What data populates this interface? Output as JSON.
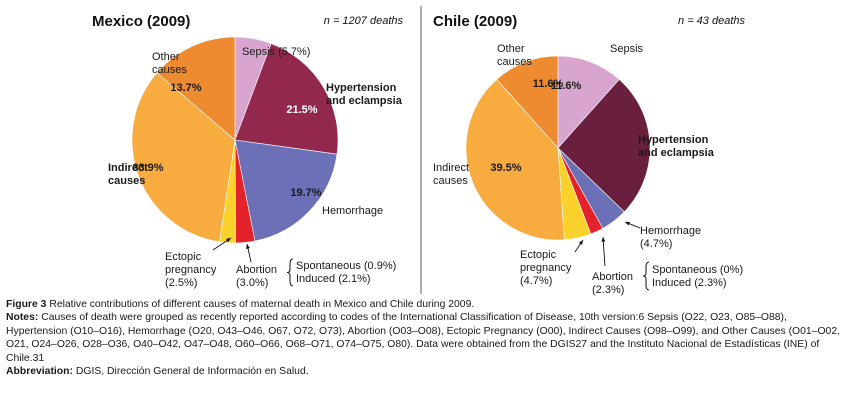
{
  "chart_data": [
    {
      "type": "pie",
      "title": "Mexico (2009)",
      "subtitle": "n = 1207 deaths",
      "slices": [
        {
          "label": "Sepsis",
          "value": 5.7,
          "value_label": "",
          "label_text": [
            "Sepsis (5.7%)"
          ],
          "color": "#d7a5ce"
        },
        {
          "label": "Hypertension and eclampsia",
          "value": 21.5,
          "value_label": "21.5%",
          "label_text": [
            "Hypertension",
            "and eclampsia"
          ],
          "color": "#93284f"
        },
        {
          "label": "Hemorrhage",
          "value": 19.7,
          "value_label": "19.7%",
          "label_text": [
            "Hemorrhage"
          ],
          "color": "#6c70b6"
        },
        {
          "label": "Abortion",
          "value": 3.0,
          "value_label": "",
          "label_text": [
            "Abortion",
            "(3.0%)"
          ],
          "color": "#e3222c"
        },
        {
          "label": "Ectopic pregnancy",
          "value": 2.5,
          "value_label": "",
          "label_text": [
            "Ectopic",
            "pregnancy",
            "(2.5%)"
          ],
          "color": "#fbd12c"
        },
        {
          "label": "Indirect causes",
          "value": 33.9,
          "value_label": "33.9%",
          "label_text": [
            "Indirect",
            "causes"
          ],
          "color": "#f8ab3f"
        },
        {
          "label": "Other causes",
          "value": 13.7,
          "value_label": "13.7%",
          "label_text": [
            "Other",
            "causes"
          ],
          "color": "#ee8a30"
        }
      ],
      "abortion_breakdown": [
        "Spontaneous (0.9%)",
        "Induced (2.1%)"
      ]
    },
    {
      "type": "pie",
      "title": "Chile (2009)",
      "subtitle": "n = 43 deaths",
      "slices": [
        {
          "label": "Sepsis",
          "value": 11.6,
          "value_label": "11.6%",
          "label_text": [
            "Sepsis"
          ],
          "color": "#d7a5ce"
        },
        {
          "label": "Hypertension and eclampsia",
          "value": 25.6,
          "value_label": "25.6%",
          "label_text": [
            "Hypertension",
            "and eclampsia"
          ],
          "color": "#6b1f3e"
        },
        {
          "label": "Hemorrhage",
          "value": 4.7,
          "value_label": "",
          "label_text": [
            "Hemorrhage",
            "(4.7%)"
          ],
          "color": "#6c70b6"
        },
        {
          "label": "Abortion",
          "value": 2.3,
          "value_label": "",
          "label_text": [
            "Abortion",
            "(2.3%)"
          ],
          "color": "#e3222c"
        },
        {
          "label": "Ectopic pregnancy",
          "value": 4.7,
          "value_label": "",
          "label_text": [
            "Ectopic",
            "pregnancy",
            "(4.7%)"
          ],
          "color": "#fbd12c"
        },
        {
          "label": "Indirect causes",
          "value": 39.5,
          "value_label": "39.5%",
          "label_text": [
            "Indirect",
            "causes"
          ],
          "color": "#f8ab3f"
        },
        {
          "label": "Other causes",
          "value": 11.6,
          "value_label": "11.6%",
          "label_text": [
            "Other",
            "causes"
          ],
          "color": "#ee8a30"
        }
      ],
      "abortion_breakdown": [
        "Spontaneous (0%)",
        "Induced (2.3%)"
      ]
    }
  ],
  "caption": {
    "figure_label": "Figure 3",
    "figure_text": "Relative contributions of different causes of maternal death in Mexico and Chile during 2009.",
    "notes_label": "Notes:",
    "notes_text": "Causes of death were grouped as recently reported according to codes of the International Classification of Disease, 10th version:6 Sepsis (O22, O23, O85–O88), Hypertension (O10–O16), Hemorrhage (O20, O43–O46, O67, O72, O73), Abortion (O03–O08), Ectopic Pregnancy (O00), Indirect Causes (O98–O99), and Other Causes (O01–O02, O21, O24–O26, O28–O36, O40–O42, O47–O48, O60–O66, O68–O71, O74–O75, O80). Data were obtained from the DGIS27 and the Instituto Nacional de Estadísticas (INE) of Chile.31",
    "abbrev_label": "Abbreviation:",
    "abbrev_text": "DGIS, Dirección General de Información en Salud."
  }
}
